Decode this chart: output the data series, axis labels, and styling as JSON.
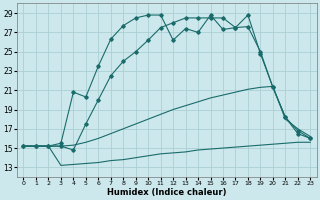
{
  "xlabel": "Humidex (Indice chaleur)",
  "background_color": "#cce8ec",
  "grid_color": "#aacfd4",
  "line_color": "#1a6b6b",
  "ylim": [
    12,
    30
  ],
  "xlim": [
    -0.5,
    23.5
  ],
  "yticks": [
    13,
    15,
    17,
    19,
    21,
    23,
    25,
    27,
    29
  ],
  "xticks": [
    0,
    1,
    2,
    3,
    4,
    5,
    6,
    7,
    8,
    9,
    10,
    11,
    12,
    13,
    14,
    15,
    16,
    17,
    18,
    19,
    20,
    21,
    22,
    23
  ],
  "line1_x": [
    0,
    1,
    2,
    3,
    4,
    5,
    6,
    7,
    8,
    9,
    10,
    11,
    12,
    13,
    14,
    15,
    16,
    17,
    18,
    19,
    20,
    21,
    22,
    23
  ],
  "line1_y": [
    15.2,
    15.2,
    15.2,
    13.2,
    13.3,
    13.4,
    13.5,
    13.7,
    13.8,
    14.0,
    14.2,
    14.4,
    14.5,
    14.6,
    14.8,
    14.9,
    15.0,
    15.1,
    15.2,
    15.3,
    15.4,
    15.5,
    15.6,
    15.6
  ],
  "line2_x": [
    0,
    1,
    2,
    3,
    4,
    5,
    6,
    7,
    8,
    9,
    10,
    11,
    12,
    13,
    14,
    15,
    16,
    17,
    18,
    19,
    20,
    21,
    22,
    23
  ],
  "line2_y": [
    15.2,
    15.2,
    15.2,
    15.2,
    15.3,
    15.6,
    16.0,
    16.5,
    17.0,
    17.5,
    18.0,
    18.5,
    19.0,
    19.4,
    19.8,
    20.2,
    20.5,
    20.8,
    21.1,
    21.3,
    21.4,
    18.0,
    17.0,
    16.2
  ],
  "line3_x": [
    0,
    1,
    2,
    3,
    4,
    5,
    6,
    7,
    8,
    9,
    10,
    11,
    12,
    13,
    14,
    15,
    16,
    17,
    18,
    19,
    20,
    21,
    22,
    23
  ],
  "line3_y": [
    15.2,
    15.2,
    15.2,
    15.2,
    14.8,
    17.5,
    20.0,
    22.5,
    24.0,
    25.0,
    26.2,
    27.5,
    28.0,
    28.5,
    28.5,
    28.5,
    28.5,
    27.5,
    28.8,
    24.8,
    21.3,
    18.2,
    16.5,
    16.0
  ],
  "line4_x": [
    0,
    1,
    2,
    3,
    4,
    5,
    6,
    7,
    8,
    9,
    10,
    11,
    12,
    13,
    14,
    15,
    16,
    17,
    18,
    19,
    20,
    21,
    22,
    23
  ],
  "line4_y": [
    15.2,
    15.2,
    15.2,
    15.5,
    20.8,
    20.3,
    23.5,
    26.3,
    27.7,
    28.5,
    28.8,
    28.8,
    26.2,
    27.4,
    27.0,
    28.8,
    27.3,
    27.5,
    27.6,
    25.0,
    21.3,
    18.2,
    16.8,
    16.0
  ]
}
